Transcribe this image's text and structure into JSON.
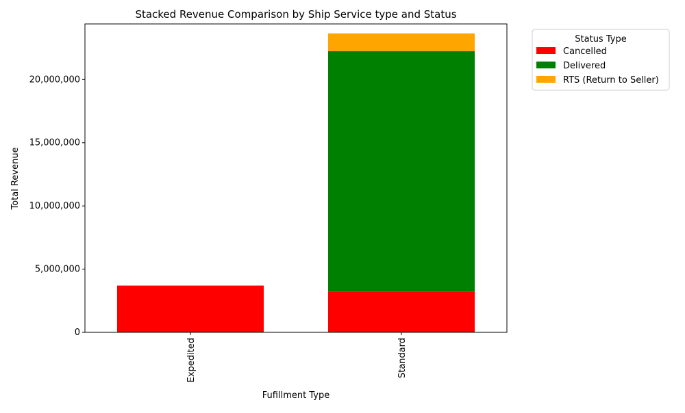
{
  "chart_data": {
    "type": "bar",
    "stacked": true,
    "title": "Stacked Revenue Comparison by Ship Service type and Status",
    "xlabel": "Fufillment Type",
    "ylabel": "Total Revenue",
    "categories": [
      "Expedited",
      "Standard"
    ],
    "series": [
      {
        "name": "Cancelled",
        "color": "#ff0000",
        "values": [
          3700000,
          3200000
        ]
      },
      {
        "name": "Delivered",
        "color": "#008000",
        "values": [
          0,
          19050000
        ]
      },
      {
        "name": "RTS (Return to Seller)",
        "color": "#ffa500",
        "values": [
          0,
          1400000
        ]
      }
    ],
    "ylim": [
      0,
      24400000
    ],
    "yticks": [
      0,
      5000000,
      10000000,
      15000000,
      20000000
    ],
    "ytick_labels": [
      "0",
      "5,000,000",
      "10,000,000",
      "15,000,000",
      "20,000,000"
    ],
    "legend": {
      "title": "Status Type",
      "placement": "outside-upper-right"
    },
    "grid": false
  }
}
